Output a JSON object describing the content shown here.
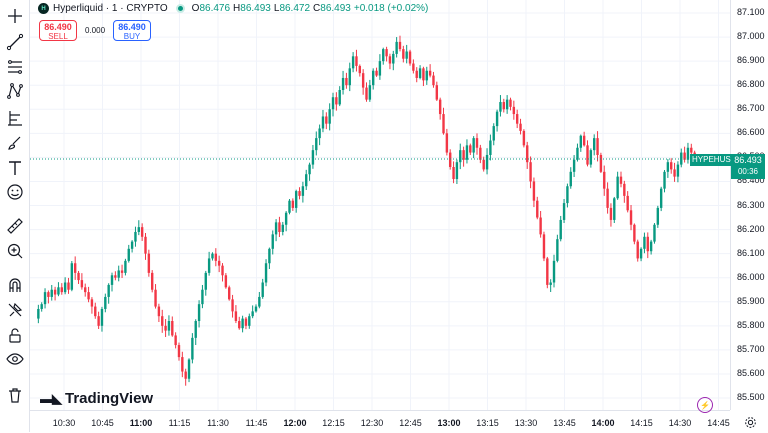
{
  "legend": {
    "logo_text": "H",
    "title": "Hyperliquid · 1 · CRYPTO",
    "o_label": "O",
    "o_value": "86.476",
    "h_label": "H",
    "h_value": "86.493",
    "l_label": "L",
    "l_value": "86.472",
    "c_label": "C",
    "c_value": "86.493",
    "change": "+0.018 (+0.02%)"
  },
  "trade": {
    "sell_price": "86.490",
    "sell_label": "SELL",
    "spread": "0.000",
    "buy_price": "86.490",
    "buy_label": "BUY"
  },
  "price_tag": {
    "symbol": "HYPEHUSD",
    "price": "86.493",
    "countdown": "00:36"
  },
  "brand": {
    "logo_text": "TradingView"
  },
  "toolbar": {
    "icons": [
      "crosshair-icon",
      "trendline-icon",
      "fib-icon",
      "pattern-icon",
      "forecast-icon",
      "brush-icon",
      "text-icon",
      "emoji-icon",
      "ruler-icon",
      "zoom-in-icon",
      "magnet-icon",
      "lock-icon",
      "unlock-icon",
      "eye-icon",
      "trash-icon"
    ]
  },
  "colors": {
    "up": "#089981",
    "down": "#f23645",
    "grid": "#f0f3fa",
    "axis_text": "#131722"
  },
  "chart_data": {
    "type": "candlestick",
    "price_ticks": [
      "87.100",
      "87.000",
      "86.900",
      "86.800",
      "86.700",
      "86.600",
      "86.500",
      "86.400",
      "86.300",
      "86.200",
      "86.100",
      "86.000",
      "85.900",
      "85.800",
      "85.700",
      "85.600",
      "85.500"
    ],
    "time_ticks": [
      "10:30",
      "10:45",
      "11:00",
      "11:15",
      "11:30",
      "11:45",
      "12:00",
      "12:15",
      "12:30",
      "12:45",
      "13:00",
      "13:15",
      "13:30",
      "13:45",
      "14:00",
      "14:15",
      "14:30",
      "14:45"
    ],
    "bold_ticks": [
      "11:00",
      "12:00",
      "13:00",
      "14:00"
    ],
    "ylim": [
      85.5,
      87.1
    ],
    "last_price": 86.493,
    "closes": [
      85.83,
      85.87,
      85.89,
      85.94,
      85.92,
      85.95,
      85.93,
      85.96,
      85.94,
      85.98,
      85.95,
      86.06,
      86.02,
      85.99,
      85.96,
      85.94,
      85.91,
      85.88,
      85.84,
      85.8,
      85.87,
      85.92,
      85.97,
      86.01,
      86.0,
      86.03,
      86.02,
      86.07,
      86.12,
      86.15,
      86.19,
      86.21,
      86.17,
      86.1,
      86.02,
      85.95,
      85.88,
      85.84,
      85.8,
      85.78,
      85.82,
      85.76,
      85.72,
      85.67,
      85.61,
      85.58,
      85.66,
      85.75,
      85.82,
      85.89,
      85.95,
      86.02,
      86.08,
      86.1,
      86.07,
      86.05,
      86.01,
      85.96,
      85.91,
      85.86,
      85.82,
      85.79,
      85.83,
      85.8,
      85.84,
      85.86,
      85.88,
      85.92,
      85.98,
      86.06,
      86.12,
      86.18,
      86.23,
      86.19,
      86.22,
      86.27,
      86.32,
      86.29,
      86.36,
      86.34,
      86.38,
      86.43,
      86.47,
      86.53,
      86.58,
      86.62,
      86.67,
      86.64,
      86.7,
      86.75,
      86.72,
      86.78,
      86.83,
      86.8,
      86.87,
      86.92,
      86.88,
      86.85,
      86.79,
      86.74,
      86.8,
      86.86,
      86.84,
      86.9,
      86.95,
      86.92,
      86.89,
      86.93,
      86.98,
      86.95,
      86.91,
      86.94,
      86.89,
      86.86,
      86.83,
      86.87,
      86.82,
      86.86,
      86.84,
      86.8,
      86.74,
      86.68,
      86.6,
      86.52,
      86.46,
      86.41,
      86.48,
      86.53,
      86.49,
      86.55,
      86.52,
      86.58,
      86.54,
      86.49,
      86.45,
      86.51,
      86.57,
      86.63,
      86.69,
      86.73,
      86.7,
      86.74,
      86.71,
      86.68,
      86.64,
      86.61,
      86.55,
      86.48,
      86.4,
      86.32,
      86.25,
      86.18,
      86.08,
      85.97,
      85.98,
      86.07,
      86.16,
      86.24,
      86.31,
      86.38,
      86.44,
      86.49,
      86.54,
      86.59,
      86.55,
      86.47,
      86.53,
      86.58,
      86.51,
      86.44,
      86.37,
      86.29,
      86.24,
      86.33,
      86.42,
      86.39,
      86.34,
      86.28,
      86.22,
      86.15,
      86.08,
      86.12,
      86.17,
      86.11,
      86.15,
      86.22,
      86.29,
      86.37,
      86.44,
      86.48,
      86.45,
      86.42,
      86.47,
      86.52,
      86.49,
      86.54,
      86.52,
      86.49,
      86.493
    ]
  }
}
